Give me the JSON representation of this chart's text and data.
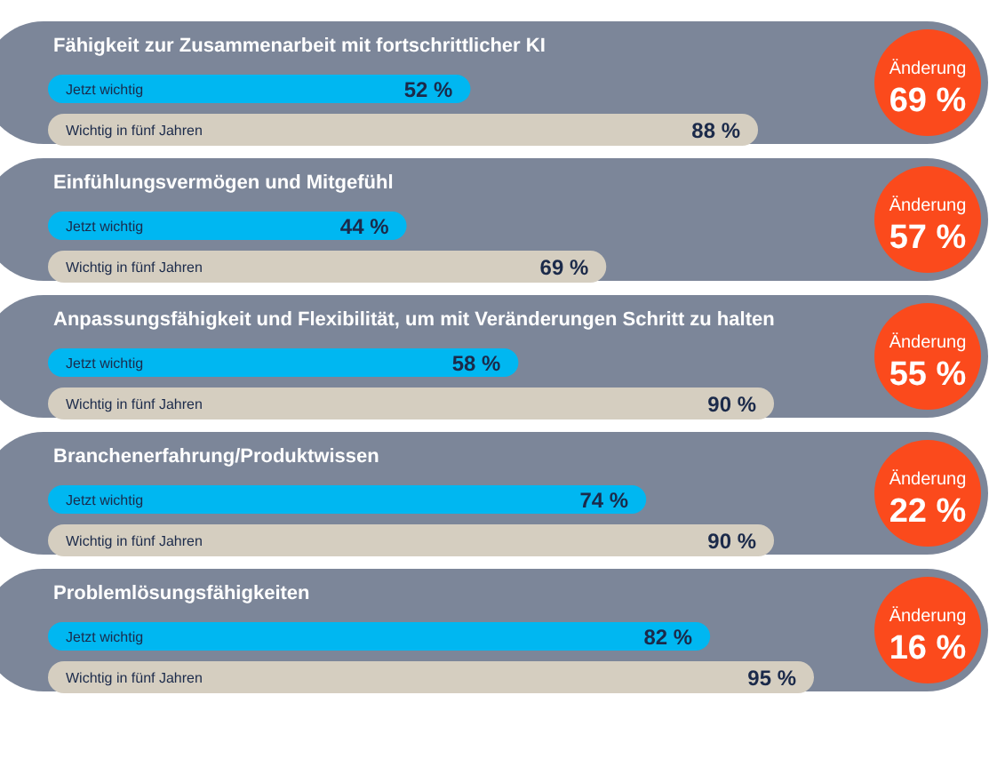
{
  "chart_data": {
    "type": "bar",
    "orientation": "horizontal",
    "categories": [
      "Fähigkeit zur Zusammenarbeit mit fortschrittlicher KI",
      "Einfühlungsvermögen und Mitgefühl",
      "Anpassungsfähigkeit und Flexibilität, um mit Veränderungen Schritt zu halten",
      "Branchenerfahrung/Produktwissen",
      "Problemlösungsfähigkeiten"
    ],
    "series": [
      {
        "name": "Jetzt wichtig",
        "color": "#00b7f1",
        "values": [
          52,
          44,
          58,
          74,
          82
        ],
        "value_labels": [
          "52 %",
          "44 %",
          "58 %",
          "74 %",
          "82 %"
        ]
      },
      {
        "name": "Wichtig in fünf Jahren",
        "color": "#d5cec0",
        "values": [
          88,
          69,
          90,
          90,
          95
        ],
        "value_labels": [
          "88 %",
          "69 %",
          "90 %",
          "90 %",
          "95 %"
        ]
      }
    ],
    "tick_labels": false,
    "legend": false,
    "annotations": [
      "Änderung 69 %",
      "Änderung 57 %",
      "Änderung 55 %",
      "Änderung 22 %",
      "Änderung 16 %"
    ]
  }
}
